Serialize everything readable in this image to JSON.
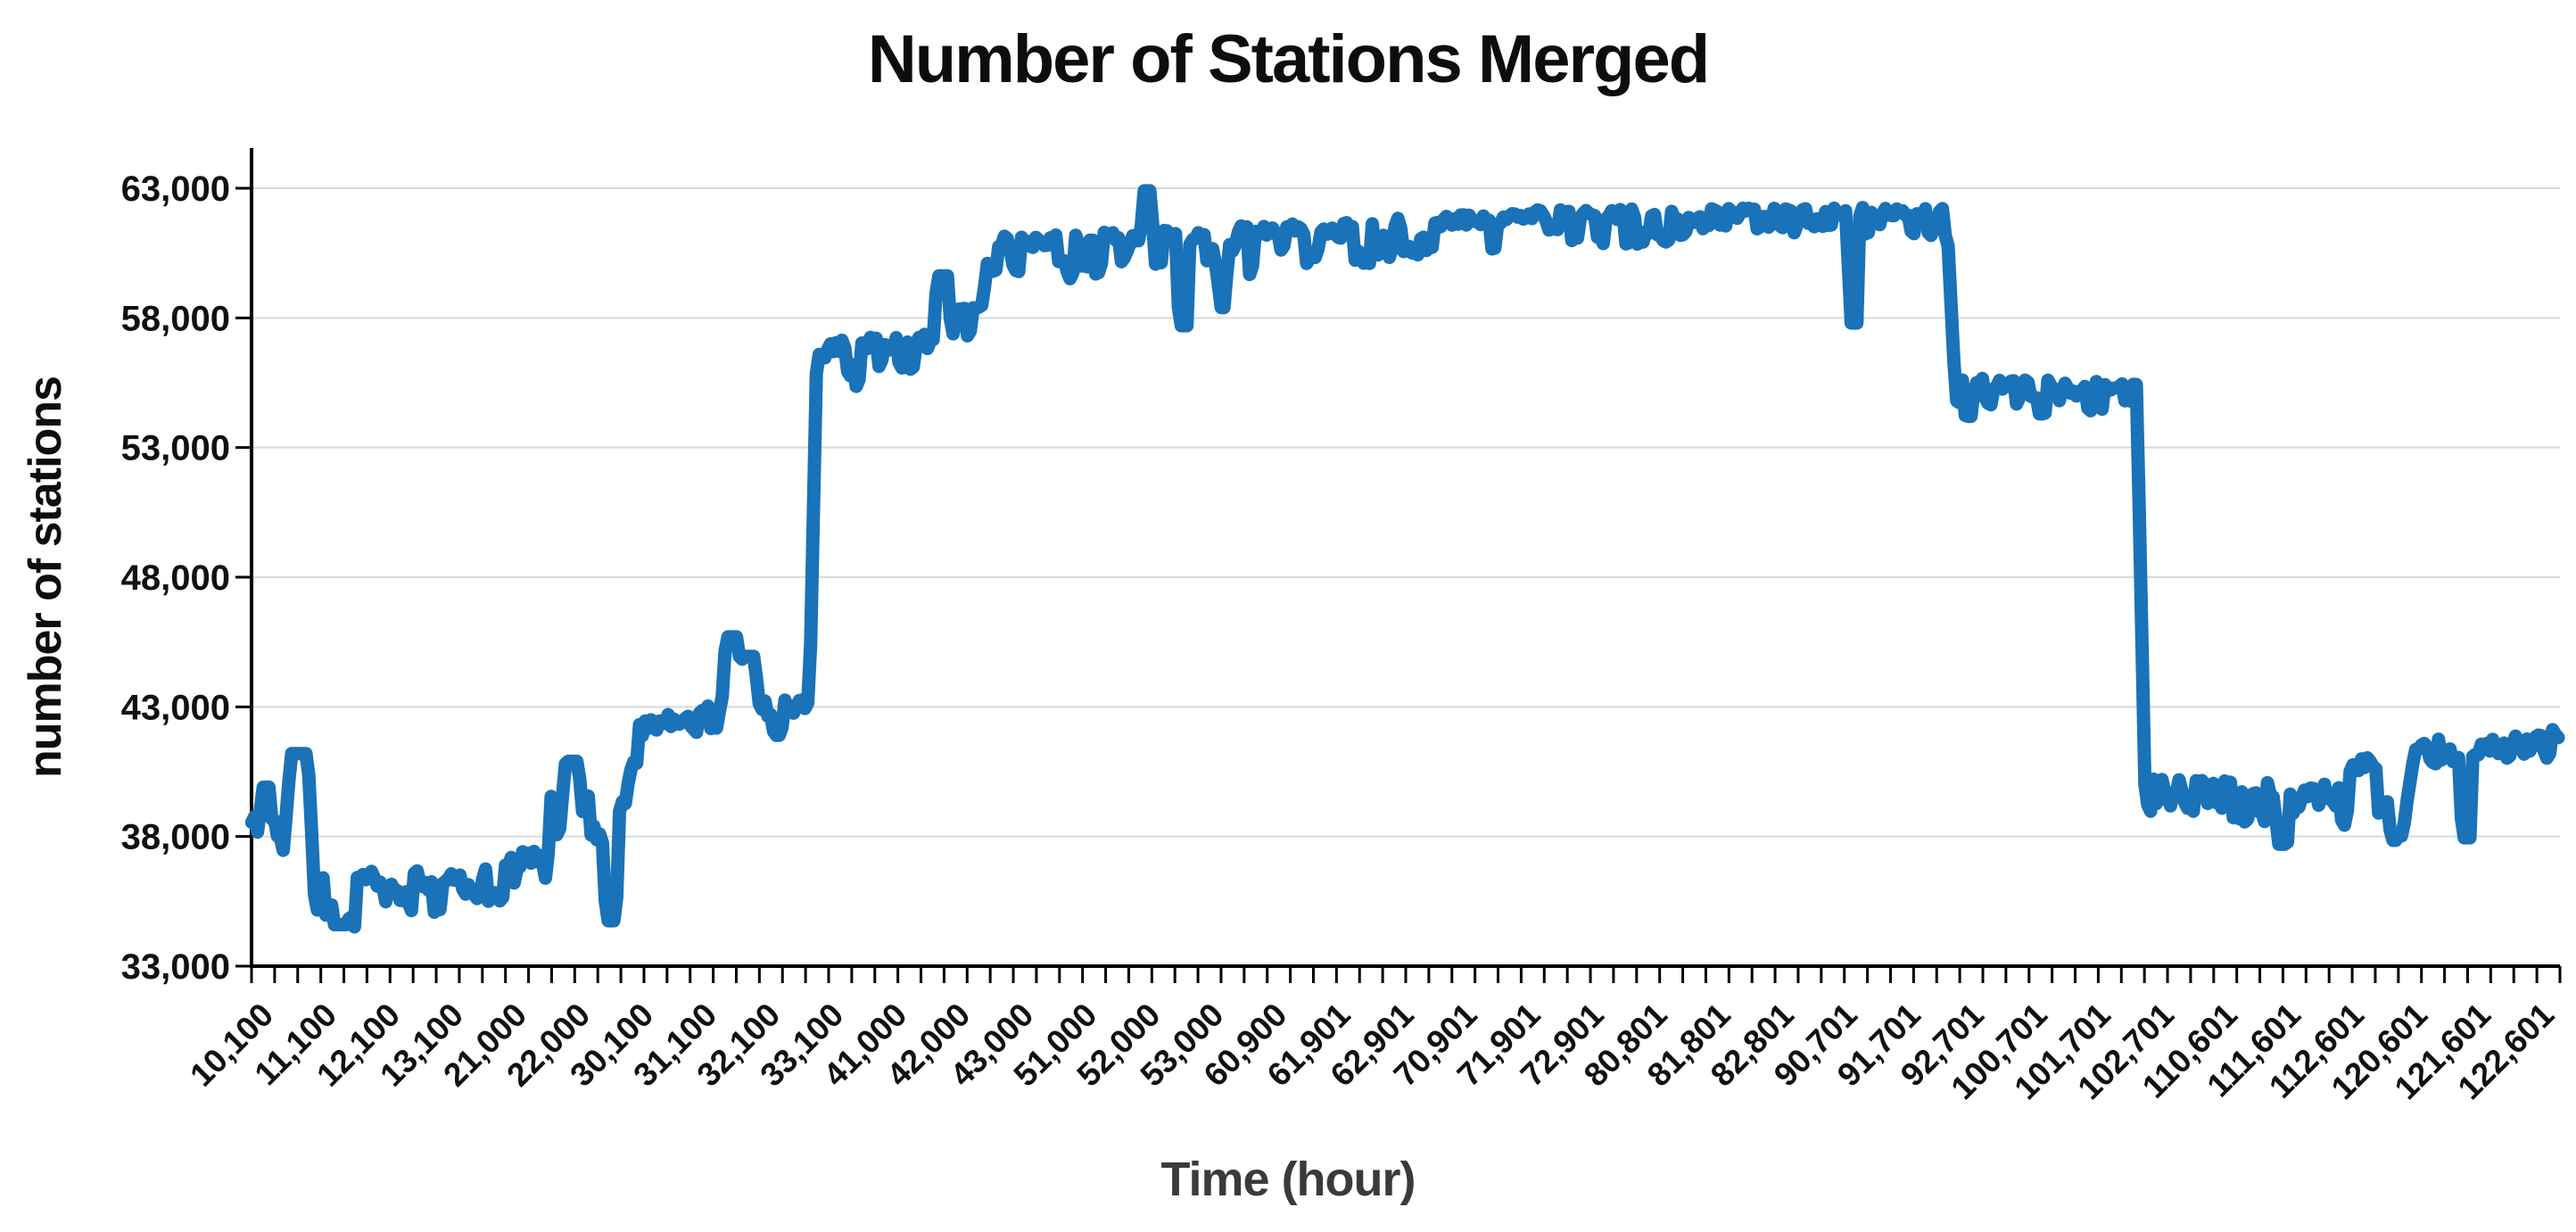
{
  "title": "Number of Stations Merged",
  "y_axis": {
    "title": "number of stations",
    "min": 33000,
    "max": 63000,
    "ticks": [
      {
        "label": "63,000",
        "value": 63000
      },
      {
        "label": "58,000",
        "value": 58000
      },
      {
        "label": "53,000",
        "value": 53000
      },
      {
        "label": "48,000",
        "value": 48000
      },
      {
        "label": "43,000",
        "value": 43000
      },
      {
        "label": "38,000",
        "value": 38000
      },
      {
        "label": "33,000",
        "value": 33000
      }
    ]
  },
  "x_axis": {
    "title": "Time  (hour)",
    "minor_tick_count": 100,
    "labels": [
      "10,100",
      "11,100",
      "12,100",
      "13,100",
      "21,000",
      "22,000",
      "30,100",
      "31,100",
      "32,100",
      "33,100",
      "41,000",
      "42,000",
      "43,000",
      "51,000",
      "52,000",
      "53,000",
      "60,900",
      "61,901",
      "62,901",
      "70,901",
      "71,901",
      "72,901",
      "80,801",
      "81,801",
      "82,801",
      "90,701",
      "91,701",
      "92,701",
      "100,701",
      "101,701",
      "102,701",
      "110,601",
      "111,601",
      "112,601",
      "120,601",
      "121,601",
      "122,601"
    ]
  },
  "colors": {
    "line": "#1a72b8",
    "grid": "#d9d9d9",
    "axis": "#000000"
  },
  "chart_data": {
    "type": "line",
    "title": "Number of Stations Merged",
    "xlabel": "Time  (hour)",
    "ylabel": "number of stations",
    "ylim": [
      33000,
      63000
    ],
    "grid": "horizontal",
    "legend": "none",
    "x_mode": "category-index",
    "categories": [
      "10,100",
      "11,100",
      "12,100",
      "13,100",
      "21,000",
      "22,000",
      "30,100",
      "31,100",
      "32,100",
      "33,100",
      "41,000",
      "42,000",
      "43,000",
      "51,000",
      "52,000",
      "53,000",
      "60,900",
      "61,901",
      "62,901",
      "70,901",
      "71,901",
      "72,901",
      "80,801",
      "81,801",
      "82,801",
      "90,701",
      "91,701",
      "92,701",
      "100,701",
      "101,701",
      "102,701",
      "110,601",
      "111,601",
      "112,601",
      "120,601",
      "121,601",
      "122,601"
    ],
    "approx_values_at_labels": [
      38500,
      36300,
      36400,
      36500,
      37200,
      39300,
      42200,
      43200,
      43100,
      57000,
      57100,
      57400,
      60950,
      61000,
      61100,
      61250,
      61400,
      61550,
      61650,
      61900,
      62000,
      62000,
      62000,
      62050,
      62050,
      62050,
      62000,
      55500,
      55450,
      55400,
      40000,
      39900,
      39850,
      40800,
      41500,
      41700,
      41900
    ],
    "segments": [
      [
        -0.2,
        0.3,
        38500,
        38500,
        550,
        1100,
        0.22
      ],
      [
        0.3,
        0.78,
        38600,
        36800,
        600,
        1000,
        0.25
      ],
      [
        0.78,
        1.45,
        36300,
        36300,
        500,
        1700,
        0.3
      ],
      [
        1.45,
        3.8,
        36400,
        36500,
        450,
        1000,
        0.26
      ],
      [
        3.8,
        4.5,
        36900,
        37300,
        500,
        900,
        0.22
      ],
      [
        4.5,
        5.15,
        39000,
        39600,
        800,
        1300,
        0.28
      ],
      [
        5.15,
        5.55,
        38400,
        37800,
        500,
        800,
        0.25
      ],
      [
        5.55,
        5.9,
        38500,
        41500,
        400,
        500,
        0.15
      ],
      [
        5.9,
        7.2,
        42100,
        42900,
        450,
        900,
        0.22
      ],
      [
        7.2,
        8.48,
        43200,
        43100,
        350,
        800,
        0.2
      ],
      [
        8.48,
        8.6,
        43100,
        43100,
        250,
        300,
        0.15
      ],
      [
        8.6,
        8.72,
        43100,
        57000,
        0,
        0,
        0
      ],
      [
        8.72,
        10.55,
        57000,
        57150,
        400,
        1400,
        0.26
      ],
      [
        10.55,
        10.9,
        57200,
        57400,
        350,
        800,
        0.22
      ],
      [
        10.9,
        11.32,
        58100,
        58300,
        300,
        700,
        0.2
      ],
      [
        11.32,
        11.45,
        58300,
        60900,
        0,
        0,
        0
      ],
      [
        11.45,
        16.2,
        60900,
        61400,
        330,
        1500,
        0.27
      ],
      [
        16.2,
        20.0,
        61400,
        61950,
        300,
        1300,
        0.26
      ],
      [
        20.0,
        26.55,
        61980,
        62100,
        260,
        1100,
        0.26
      ],
      [
        26.55,
        26.68,
        62000,
        55600,
        0,
        0,
        0
      ],
      [
        26.68,
        29.55,
        55500,
        55350,
        260,
        950,
        0.28
      ],
      [
        29.55,
        29.68,
        55350,
        40000,
        0,
        0,
        0
      ],
      [
        29.68,
        32.9,
        39950,
        39800,
        400,
        1100,
        0.28
      ],
      [
        32.9,
        33.35,
        40600,
        41000,
        320,
        700,
        0.18
      ],
      [
        33.35,
        33.82,
        39500,
        39400,
        420,
        1100,
        0.28
      ],
      [
        33.82,
        33.94,
        39400,
        41300,
        0,
        0,
        0
      ],
      [
        33.94,
        36.22,
        41500,
        41950,
        300,
        700,
        0.22
      ]
    ],
    "spikes": [
      [
        0.02,
        39900,
        0.1
      ],
      [
        0.55,
        41200,
        0.22
      ],
      [
        1.2,
        34600,
        0.18
      ],
      [
        4.85,
        40900,
        0.16
      ],
      [
        5.47,
        34750,
        0.13
      ],
      [
        7.38,
        45700,
        0.16
      ],
      [
        7.64,
        44950,
        0.16
      ],
      [
        8.1,
        41900,
        0.1
      ],
      [
        10.7,
        59620,
        0.14
      ],
      [
        13.93,
        62900,
        0.1
      ],
      [
        14.5,
        57700,
        0.11
      ],
      [
        15.12,
        58400,
        0.09
      ],
      [
        25.08,
        57800,
        0.1
      ],
      [
        26.9,
        54200,
        0.09
      ],
      [
        28.05,
        54300,
        0.09
      ],
      [
        31.85,
        37700,
        0.13
      ],
      [
        33.62,
        37850,
        0.1
      ],
      [
        34.75,
        37950,
        0.11
      ]
    ],
    "line_width": 15,
    "seed": 42
  }
}
